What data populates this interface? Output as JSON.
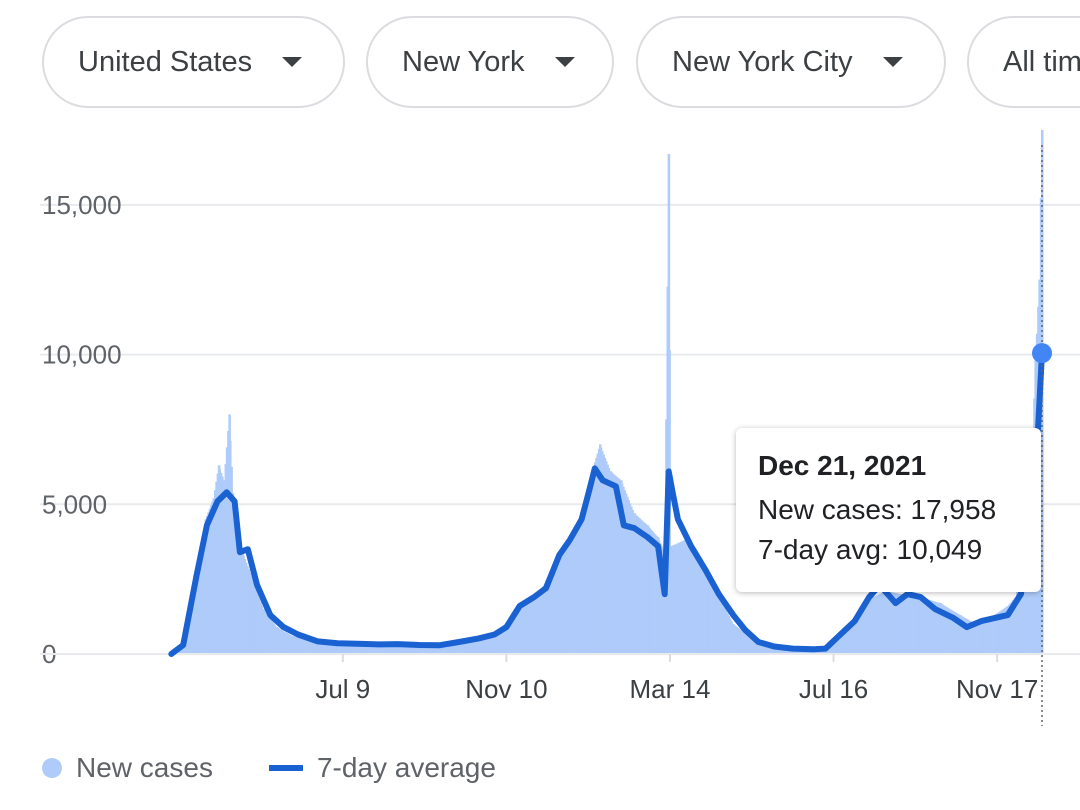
{
  "filters": {
    "country": "United States",
    "state": "New York",
    "city": "New York City",
    "time_range": "All time"
  },
  "tooltip": {
    "date": "Dec 21, 2021",
    "new_cases_label": "New cases: 17,958",
    "avg_label": "7-day avg: 10,049"
  },
  "legend": {
    "new_cases": "New cases",
    "avg": "7-day average"
  },
  "colors": {
    "bars": "#aecbfa",
    "line": "#1a62d2",
    "marker": "#4285f4",
    "grid": "#e8eaed"
  },
  "chart_data": {
    "type": "bar",
    "title": "",
    "xlabel": "",
    "ylabel": "",
    "ylim": [
      0,
      17000
    ],
    "yticks": [
      0,
      5000,
      10000,
      15000
    ],
    "yticklabels": [
      "0",
      "5,000",
      "10,000",
      "15,000"
    ],
    "xrange": [
      "2020-02-29",
      "2021-12-21"
    ],
    "xticks": [
      {
        "date": "2020-07-09",
        "label": "Jul 9"
      },
      {
        "date": "2020-11-10",
        "label": "Nov 10"
      },
      {
        "date": "2021-03-14",
        "label": "Mar 14"
      },
      {
        "date": "2021-07-16",
        "label": "Jul 16"
      },
      {
        "date": "2021-11-17",
        "label": "Nov 17"
      }
    ],
    "series": [
      {
        "name": "New cases",
        "type": "bar",
        "points": [
          [
            "2020-03-01",
            0
          ],
          [
            "2020-03-10",
            200
          ],
          [
            "2020-03-20",
            2500
          ],
          [
            "2020-03-27",
            4500
          ],
          [
            "2020-04-02",
            5200
          ],
          [
            "2020-04-06",
            6300
          ],
          [
            "2020-04-10",
            5800
          ],
          [
            "2020-04-14",
            8000
          ],
          [
            "2020-04-18",
            4500
          ],
          [
            "2020-04-24",
            3400
          ],
          [
            "2020-05-01",
            2600
          ],
          [
            "2020-05-10",
            1500
          ],
          [
            "2020-05-20",
            900
          ],
          [
            "2020-06-01",
            600
          ],
          [
            "2020-06-15",
            450
          ],
          [
            "2020-07-01",
            350
          ],
          [
            "2020-07-15",
            330
          ],
          [
            "2020-08-01",
            300
          ],
          [
            "2020-08-20",
            320
          ],
          [
            "2020-09-10",
            280
          ],
          [
            "2020-10-01",
            400
          ],
          [
            "2020-10-15",
            550
          ],
          [
            "2020-11-01",
            700
          ],
          [
            "2020-11-15",
            1200
          ],
          [
            "2020-11-25",
            1700
          ],
          [
            "2020-12-05",
            2000
          ],
          [
            "2020-12-15",
            2900
          ],
          [
            "2020-12-25",
            3600
          ],
          [
            "2021-01-05",
            4500
          ],
          [
            "2021-01-12",
            5800
          ],
          [
            "2021-01-20",
            7000
          ],
          [
            "2021-01-28",
            6100
          ],
          [
            "2021-02-05",
            5800
          ],
          [
            "2021-02-15",
            4700
          ],
          [
            "2021-02-25",
            4300
          ],
          [
            "2021-03-05",
            3900
          ],
          [
            "2021-03-10",
            3400
          ],
          [
            "2021-03-13",
            16700
          ],
          [
            "2021-03-15",
            3600
          ],
          [
            "2021-03-25",
            3800
          ],
          [
            "2021-04-05",
            3100
          ],
          [
            "2021-04-20",
            2000
          ],
          [
            "2021-05-01",
            1000
          ],
          [
            "2021-05-15",
            550
          ],
          [
            "2021-06-01",
            330
          ],
          [
            "2021-06-20",
            200
          ],
          [
            "2021-07-10",
            250
          ],
          [
            "2021-07-20",
            550
          ],
          [
            "2021-08-01",
            1100
          ],
          [
            "2021-08-15",
            1900
          ],
          [
            "2021-08-25",
            2100
          ],
          [
            "2021-09-05",
            2000
          ],
          [
            "2021-09-20",
            1900
          ],
          [
            "2021-10-05",
            1700
          ],
          [
            "2021-10-20",
            1300
          ],
          [
            "2021-11-01",
            1000
          ],
          [
            "2021-11-15",
            1300
          ],
          [
            "2021-11-25",
            1600
          ],
          [
            "2021-12-01",
            1900
          ],
          [
            "2021-12-08",
            3500
          ],
          [
            "2021-12-13",
            6000
          ],
          [
            "2021-12-16",
            9800
          ],
          [
            "2021-12-19",
            12500
          ],
          [
            "2021-12-21",
            17958
          ]
        ]
      },
      {
        "name": "7-day average",
        "type": "line",
        "points": [
          [
            "2020-03-01",
            0
          ],
          [
            "2020-03-10",
            300
          ],
          [
            "2020-03-20",
            2600
          ],
          [
            "2020-03-28",
            4300
          ],
          [
            "2020-04-05",
            5100
          ],
          [
            "2020-04-12",
            5400
          ],
          [
            "2020-04-18",
            5100
          ],
          [
            "2020-04-22",
            3400
          ],
          [
            "2020-04-28",
            3500
          ],
          [
            "2020-05-05",
            2300
          ],
          [
            "2020-05-15",
            1300
          ],
          [
            "2020-05-25",
            900
          ],
          [
            "2020-06-05",
            650
          ],
          [
            "2020-06-20",
            420
          ],
          [
            "2020-07-05",
            360
          ],
          [
            "2020-07-20",
            340
          ],
          [
            "2020-08-05",
            320
          ],
          [
            "2020-08-20",
            330
          ],
          [
            "2020-09-05",
            300
          ],
          [
            "2020-09-20",
            290
          ],
          [
            "2020-10-05",
            400
          ],
          [
            "2020-10-20",
            520
          ],
          [
            "2020-11-01",
            650
          ],
          [
            "2020-11-10",
            900
          ],
          [
            "2020-11-20",
            1600
          ],
          [
            "2020-12-01",
            1900
          ],
          [
            "2020-12-10",
            2200
          ],
          [
            "2020-12-20",
            3300
          ],
          [
            "2020-12-28",
            3800
          ],
          [
            "2021-01-06",
            4500
          ],
          [
            "2021-01-12",
            5500
          ],
          [
            "2021-01-16",
            6200
          ],
          [
            "2021-01-22",
            5800
          ],
          [
            "2021-02-01",
            5600
          ],
          [
            "2021-02-07",
            4300
          ],
          [
            "2021-02-15",
            4200
          ],
          [
            "2021-02-25",
            3900
          ],
          [
            "2021-03-05",
            3600
          ],
          [
            "2021-03-10",
            2000
          ],
          [
            "2021-03-13",
            6100
          ],
          [
            "2021-03-16",
            5400
          ],
          [
            "2021-03-20",
            4500
          ],
          [
            "2021-03-30",
            3600
          ],
          [
            "2021-04-10",
            2800
          ],
          [
            "2021-04-20",
            2000
          ],
          [
            "2021-05-01",
            1300
          ],
          [
            "2021-05-10",
            800
          ],
          [
            "2021-05-20",
            400
          ],
          [
            "2021-06-01",
            250
          ],
          [
            "2021-06-15",
            180
          ],
          [
            "2021-07-01",
            160
          ],
          [
            "2021-07-10",
            180
          ],
          [
            "2021-07-20",
            600
          ],
          [
            "2021-08-01",
            1100
          ],
          [
            "2021-08-12",
            1900
          ],
          [
            "2021-08-20",
            2300
          ],
          [
            "2021-09-01",
            1700
          ],
          [
            "2021-09-10",
            2000
          ],
          [
            "2021-09-20",
            1900
          ],
          [
            "2021-10-01",
            1500
          ],
          [
            "2021-10-15",
            1200
          ],
          [
            "2021-10-25",
            900
          ],
          [
            "2021-11-05",
            1100
          ],
          [
            "2021-11-15",
            1200
          ],
          [
            "2021-11-25",
            1300
          ],
          [
            "2021-12-05",
            2000
          ],
          [
            "2021-12-10",
            3500
          ],
          [
            "2021-12-15",
            5500
          ],
          [
            "2021-12-18",
            7500
          ],
          [
            "2021-12-21",
            10049
          ]
        ]
      }
    ],
    "highlight": {
      "date": "2021-12-21",
      "new_cases": 17958,
      "avg": 10049
    },
    "legend_position": "bottom-left",
    "grid": true
  }
}
